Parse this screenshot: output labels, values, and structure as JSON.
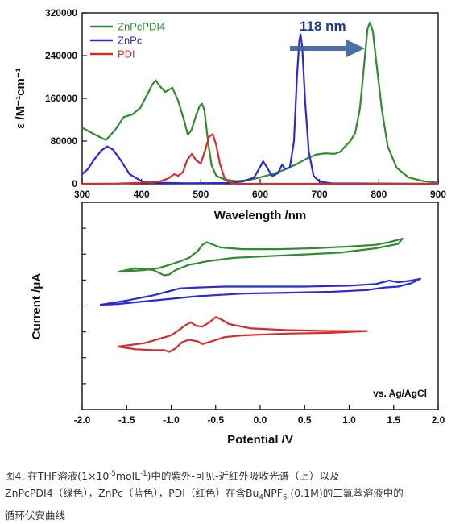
{
  "chart_data": [
    {
      "type": "line",
      "title": "",
      "xlabel": "Wavelength /nm",
      "ylabel": "ε /M⁻¹cm⁻¹",
      "xlim": [
        300,
        900
      ],
      "ylim": [
        0,
        320000
      ],
      "x_ticks": [
        300,
        400,
        500,
        600,
        700,
        800,
        900
      ],
      "y_ticks": [
        0,
        80000,
        160000,
        240000,
        320000
      ],
      "legend_position": "top-left",
      "annotation": "118 nm",
      "series": [
        {
          "name": "ZnPcPDI4",
          "color": "#2e8b2e",
          "points": [
            [
              300,
              105000
            ],
            [
              320,
              93000
            ],
            [
              340,
              82000
            ],
            [
              355,
              100000
            ],
            [
              370,
              125000
            ],
            [
              385,
              130000
            ],
            [
              398,
              142000
            ],
            [
              410,
              168000
            ],
            [
              418,
              185000
            ],
            [
              424,
              194000
            ],
            [
              430,
              184000
            ],
            [
              440,
              172000
            ],
            [
              452,
              180000
            ],
            [
              462,
              155000
            ],
            [
              472,
              118000
            ],
            [
              478,
              92000
            ],
            [
              484,
              100000
            ],
            [
              492,
              128000
            ],
            [
              498,
              146000
            ],
            [
              502,
              150000
            ],
            [
              506,
              138000
            ],
            [
              512,
              80000
            ],
            [
              518,
              35000
            ],
            [
              526,
              15000
            ],
            [
              540,
              8000
            ],
            [
              560,
              5000
            ],
            [
              580,
              7000
            ],
            [
              600,
              12000
            ],
            [
              620,
              18000
            ],
            [
              640,
              26000
            ],
            [
              660,
              36000
            ],
            [
              680,
              48000
            ],
            [
              695,
              55000
            ],
            [
              710,
              57000
            ],
            [
              725,
              56000
            ],
            [
              735,
              60000
            ],
            [
              745,
              72000
            ],
            [
              752,
              80000
            ],
            [
              760,
              95000
            ],
            [
              768,
              140000
            ],
            [
              775,
              220000
            ],
            [
              781,
              290000
            ],
            [
              785,
              302000
            ],
            [
              790,
              285000
            ],
            [
              796,
              225000
            ],
            [
              805,
              140000
            ],
            [
              815,
              70000
            ],
            [
              830,
              30000
            ],
            [
              850,
              12000
            ],
            [
              875,
              5000
            ],
            [
              900,
              2000
            ]
          ]
        },
        {
          "name": "ZnPc",
          "color": "#2b2bd4",
          "points": [
            [
              300,
              18000
            ],
            [
              310,
              28000
            ],
            [
              320,
              45000
            ],
            [
              332,
              62000
            ],
            [
              342,
              70000
            ],
            [
              352,
              64000
            ],
            [
              365,
              44000
            ],
            [
              380,
              18000
            ],
            [
              400,
              5000
            ],
            [
              430,
              2000
            ],
            [
              480,
              1000
            ],
            [
              540,
              1500
            ],
            [
              570,
              4000
            ],
            [
              590,
              12000
            ],
            [
              600,
              32000
            ],
            [
              605,
              42000
            ],
            [
              612,
              30000
            ],
            [
              620,
              14000
            ],
            [
              630,
              20000
            ],
            [
              637,
              36000
            ],
            [
              642,
              28000
            ],
            [
              650,
              30000
            ],
            [
              657,
              80000
            ],
            [
              662,
              200000
            ],
            [
              666,
              268000
            ],
            [
              668,
              280000
            ],
            [
              671,
              255000
            ],
            [
              676,
              150000
            ],
            [
              682,
              60000
            ],
            [
              690,
              15000
            ],
            [
              700,
              4000
            ],
            [
              720,
              1000
            ],
            [
              900,
              0
            ]
          ]
        },
        {
          "name": "PDI",
          "color": "#d42b2b",
          "points": [
            [
              300,
              0
            ],
            [
              360,
              500
            ],
            [
              400,
              2000
            ],
            [
              430,
              4000
            ],
            [
              445,
              10000
            ],
            [
              455,
              18000
            ],
            [
              462,
              15000
            ],
            [
              470,
              22000
            ],
            [
              477,
              45000
            ],
            [
              485,
              56000
            ],
            [
              492,
              44000
            ],
            [
              500,
              38000
            ],
            [
              507,
              62000
            ],
            [
              514,
              88000
            ],
            [
              520,
              93000
            ],
            [
              526,
              72000
            ],
            [
              532,
              38000
            ],
            [
              540,
              10000
            ],
            [
              550,
              2000
            ],
            [
              560,
              0
            ],
            [
              900,
              0
            ]
          ]
        }
      ]
    },
    {
      "type": "line",
      "title": "",
      "xlabel": "Potential /V",
      "ylabel": "Current /μA",
      "xlim": [
        -2.0,
        2.0
      ],
      "x_ticks": [
        -2.0,
        -1.5,
        -1.0,
        -0.5,
        0.0,
        0.5,
        1.0,
        1.5,
        2.0
      ],
      "annotation": "vs. Ag/AgCl",
      "series": [
        {
          "name": "ZnPcPDI4",
          "color": "#2e8b2e",
          "points": [
            [
              -1.6,
              48
            ],
            [
              -1.3,
              50
            ],
            [
              -1.15,
              52
            ],
            [
              -1.05,
              55
            ],
            [
              -0.9,
              60
            ],
            [
              -0.8,
              64
            ],
            [
              -0.7,
              72
            ],
            [
              -0.65,
              79
            ],
            [
              -0.6,
              82
            ],
            [
              -0.55,
              80
            ],
            [
              -0.45,
              76
            ],
            [
              -0.2,
              74
            ],
            [
              0.2,
              74
            ],
            [
              0.6,
              75
            ],
            [
              1.0,
              77
            ],
            [
              1.3,
              79
            ],
            [
              1.45,
              82
            ],
            [
              1.6,
              86
            ],
            [
              1.55,
              80
            ],
            [
              1.3,
              75
            ],
            [
              0.9,
              70
            ],
            [
              0.5,
              68
            ],
            [
              0.1,
              66
            ],
            [
              -0.3,
              64
            ],
            [
              -0.6,
              60
            ],
            [
              -0.7,
              58
            ],
            [
              -0.8,
              56
            ],
            [
              -0.95,
              50
            ],
            [
              -1.02,
              45
            ],
            [
              -1.08,
              44
            ],
            [
              -1.2,
              50
            ],
            [
              -1.4,
              52
            ],
            [
              -1.6,
              48
            ]
          ]
        },
        {
          "name": "ZnPc",
          "color": "#2b2bd4",
          "points": [
            [
              -1.8,
              10
            ],
            [
              -1.5,
              15
            ],
            [
              -1.2,
              21
            ],
            [
              -1.05,
              25
            ],
            [
              -0.9,
              29
            ],
            [
              -0.7,
              30
            ],
            [
              -0.4,
              31
            ],
            [
              0.0,
              31
            ],
            [
              0.5,
              31
            ],
            [
              1.0,
              32
            ],
            [
              1.3,
              34
            ],
            [
              1.45,
              38
            ],
            [
              1.55,
              36
            ],
            [
              1.7,
              38
            ],
            [
              1.8,
              40
            ],
            [
              1.7,
              35
            ],
            [
              1.55,
              31
            ],
            [
              1.4,
              30
            ],
            [
              1.2,
              27
            ],
            [
              0.8,
              25
            ],
            [
              0.3,
              24
            ],
            [
              -0.2,
              23
            ],
            [
              -0.7,
              20
            ],
            [
              -1.0,
              17
            ],
            [
              -1.3,
              14
            ],
            [
              -1.6,
              11
            ],
            [
              -1.8,
              10
            ]
          ]
        },
        {
          "name": "PDI",
          "color": "#d42b2b",
          "points": [
            [
              -1.6,
              -38
            ],
            [
              -1.3,
              -34
            ],
            [
              -1.1,
              -28
            ],
            [
              -1.0,
              -25
            ],
            [
              -0.9,
              -18
            ],
            [
              -0.85,
              -14
            ],
            [
              -0.78,
              -10
            ],
            [
              -0.72,
              -14
            ],
            [
              -0.65,
              -15
            ],
            [
              -0.57,
              -10
            ],
            [
              -0.5,
              -4
            ],
            [
              -0.45,
              -6
            ],
            [
              -0.35,
              -12
            ],
            [
              -0.1,
              -17
            ],
            [
              0.3,
              -19
            ],
            [
              0.8,
              -20
            ],
            [
              1.2,
              -20
            ],
            [
              0.8,
              -22
            ],
            [
              0.3,
              -23
            ],
            [
              -0.2,
              -25
            ],
            [
              -0.4,
              -27
            ],
            [
              -0.55,
              -32
            ],
            [
              -0.65,
              -35
            ],
            [
              -0.7,
              -32
            ],
            [
              -0.8,
              -30
            ],
            [
              -0.88,
              -33
            ],
            [
              -0.95,
              -40
            ],
            [
              -1.02,
              -44
            ],
            [
              -1.08,
              -42
            ],
            [
              -1.2,
              -42
            ],
            [
              -1.4,
              -41
            ],
            [
              -1.6,
              -38
            ]
          ]
        }
      ]
    }
  ],
  "caption": {
    "line1_pre": "图4. 在THF溶液(1×10",
    "line1_sup1": "-5",
    "line1_mid": "molL",
    "line1_sup2": "-1",
    "line1_post": ")中的紫外-可见-近红外吸收光谱（上）以及",
    "line2_pre": "ZnPcPDI4（绿色），ZnPc（蓝色），PDI（红色）在含Bu",
    "line2_sub1": "4",
    "line2_mid": "NPF",
    "line2_sub2": "6",
    "line2_post": " (0.1M)的二氯苯溶液中的",
    "line3": "循环伏安曲线"
  }
}
